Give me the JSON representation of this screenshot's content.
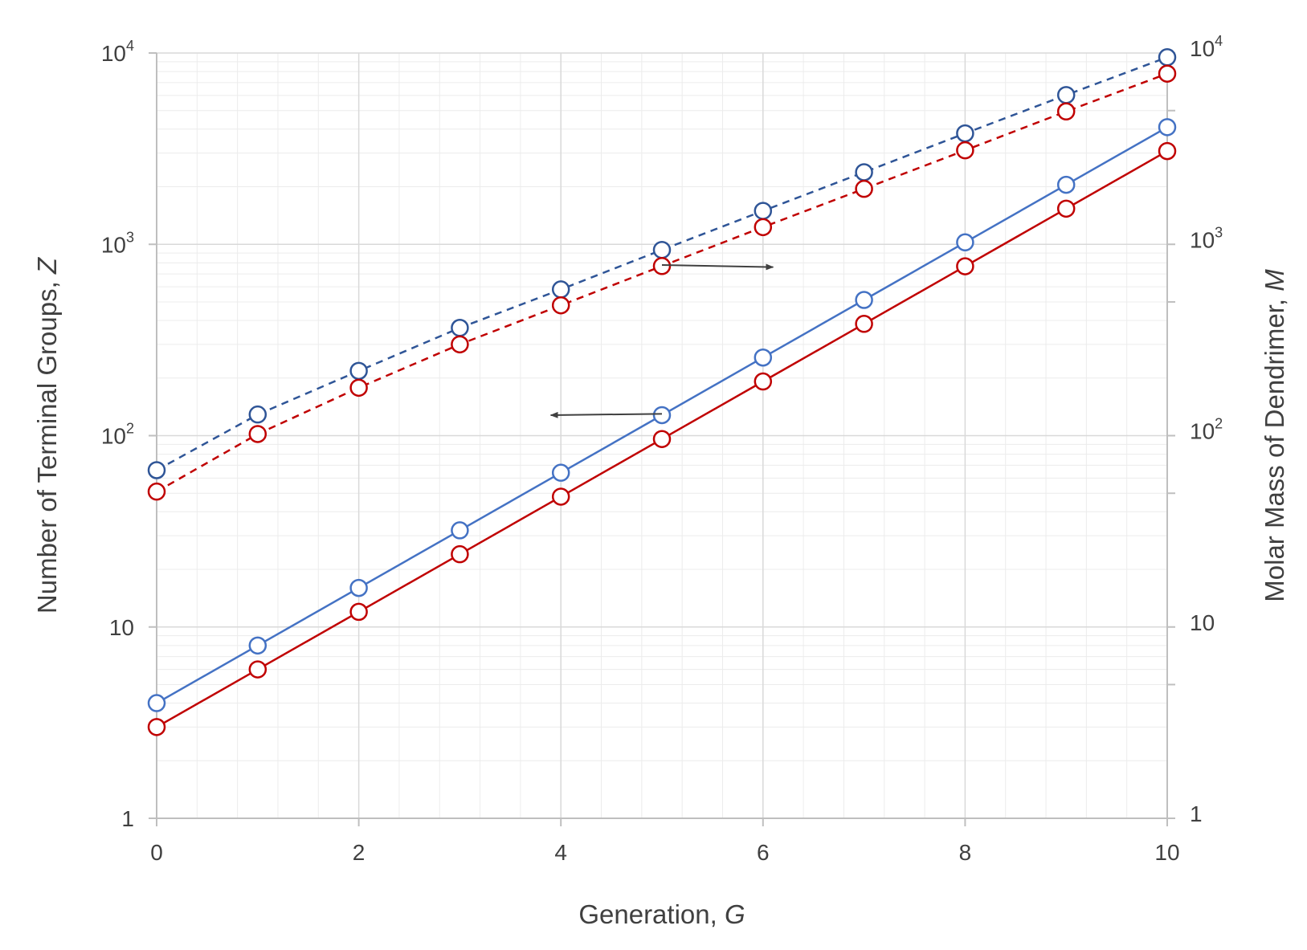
{
  "chart_data": {
    "type": "line",
    "xlabel": "Generation,",
    "xlabel_var": "G",
    "ylabel_left": "Number of Terminal Groups,",
    "ylabel_left_var": "Z",
    "ylabel_right": "Molar Mass of Dendrimer,",
    "ylabel_right_var": "M",
    "xlim": [
      0,
      10
    ],
    "ylim_left": [
      1,
      10000
    ],
    "ylim_right": [
      1,
      10000
    ],
    "y_scale": "log",
    "grid": true,
    "x_ticks": [
      "0",
      "2",
      "4",
      "6",
      "8",
      "10"
    ],
    "y_ticks_left": [
      {
        "base": "1",
        "exp": ""
      },
      {
        "base": "10",
        "exp": ""
      },
      {
        "base": "10",
        "exp": "2"
      },
      {
        "base": "10",
        "exp": "3"
      },
      {
        "base": "10",
        "exp": "4"
      }
    ],
    "y_ticks_right": [
      {
        "base": "1",
        "exp": ""
      },
      {
        "base": "10",
        "exp": ""
      },
      {
        "base": "10",
        "exp": "2"
      },
      {
        "base": "10",
        "exp": "3"
      },
      {
        "base": "10",
        "exp": "4"
      }
    ],
    "x": [
      0,
      1,
      2,
      3,
      4,
      5,
      6,
      7,
      8,
      9,
      10
    ],
    "series": [
      {
        "axis": "right",
        "style": "dashed",
        "color": "#2f5597",
        "values": [
          66,
          129,
          218,
          366,
          581,
          935,
          1496,
          2381,
          3800,
          6030,
          9500
        ]
      },
      {
        "axis": "right",
        "style": "dashed",
        "color": "#c00000",
        "values": [
          51,
          102,
          178,
          300,
          480,
          770,
          1230,
          1950,
          3100,
          4950,
          7800
        ]
      },
      {
        "axis": "left",
        "style": "solid",
        "color": "#4472c4",
        "values": [
          4,
          8,
          16,
          32,
          64,
          128,
          256,
          512,
          1024,
          2048,
          4096
        ]
      },
      {
        "axis": "left",
        "style": "solid",
        "color": "#c00000",
        "values": [
          3,
          6,
          12,
          24,
          48,
          96,
          192,
          384,
          768,
          1536,
          3072
        ]
      }
    ],
    "annotations": [
      {
        "type": "arrow",
        "direction": "right",
        "from": [
          5,
          780
        ],
        "to": [
          6.1,
          760
        ],
        "color": "#404040"
      },
      {
        "type": "arrow",
        "direction": "left",
        "from": [
          5,
          130
        ],
        "to": [
          3.9,
          128
        ],
        "color": "#404040"
      }
    ]
  }
}
